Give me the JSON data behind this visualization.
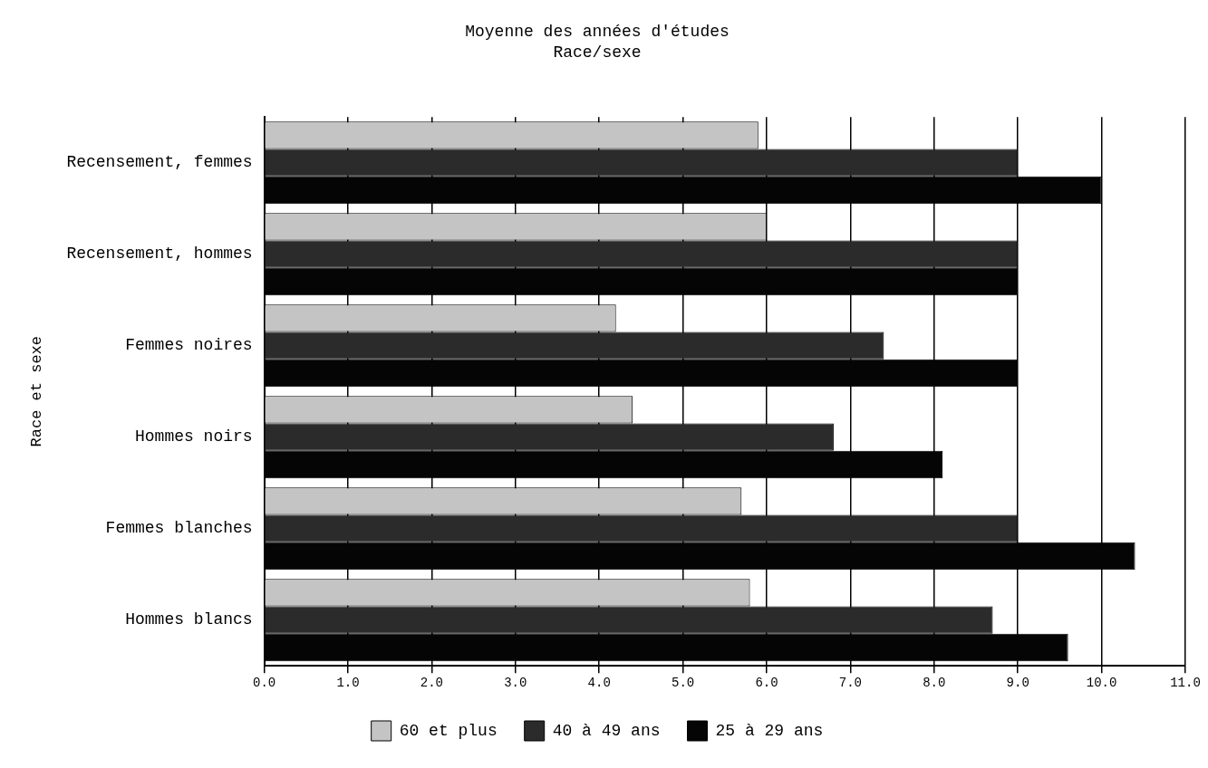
{
  "chart_data": {
    "type": "bar",
    "orientation": "horizontal",
    "title": "Moyenne des années d'études",
    "subtitle": "Race/sexe",
    "ylabel": "Race et sexe",
    "categories": [
      "Recensement, femmes",
      "Recensement, hommes",
      "Femmes noires",
      "Hommes noirs",
      "Femmes blanches",
      "Hommes blancs"
    ],
    "series": [
      {
        "name": "60 et plus",
        "color": "#c4c4c4",
        "values": [
          5.9,
          6.0,
          4.2,
          4.4,
          5.7,
          5.8
        ]
      },
      {
        "name": "40 à 49 ans",
        "color": "#2b2b2b",
        "values": [
          9.0,
          9.0,
          7.4,
          6.8,
          9.0,
          8.7
        ]
      },
      {
        "name": "25 à 29 ans",
        "color": "#050505",
        "values": [
          10.0,
          9.0,
          9.0,
          8.1,
          10.4,
          9.6
        ]
      }
    ],
    "xlim": [
      0,
      11
    ],
    "xticks": [
      {
        "value": 0,
        "label": "0.0"
      },
      {
        "value": 1,
        "label": "1.0"
      },
      {
        "value": 2,
        "label": "2.0"
      },
      {
        "value": 3,
        "label": "3.0"
      },
      {
        "value": 4,
        "label": "4.0"
      },
      {
        "value": 5,
        "label": "5.0"
      },
      {
        "value": 6,
        "label": "6.0"
      },
      {
        "value": 7,
        "label": "7.0"
      },
      {
        "value": 8,
        "label": "8.0"
      },
      {
        "value": 9,
        "label": "9.0"
      },
      {
        "value": 10,
        "label": "10.0"
      },
      {
        "value": 11,
        "label": "11.0"
      }
    ],
    "grid": "x",
    "legend": "bottom"
  }
}
